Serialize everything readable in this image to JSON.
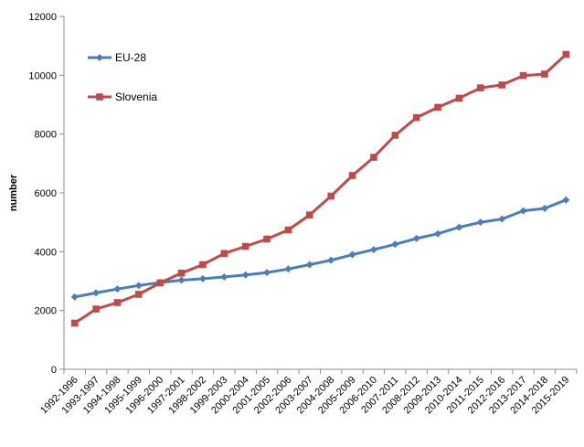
{
  "chart_data": {
    "type": "line",
    "title": "",
    "xlabel": "",
    "ylabel": "number",
    "ylim": [
      0,
      12000
    ],
    "yticks": [
      0,
      2000,
      4000,
      6000,
      8000,
      10000,
      12000
    ],
    "grid": false,
    "legend_position": "top-left",
    "categories": [
      "1992-1996",
      "1993-1997",
      "1994-1998",
      "1995-1999",
      "1996-2000",
      "1997-2001",
      "1998-2002",
      "1999-2003",
      "2000-2004",
      "2001-2005",
      "2002-2006",
      "2003-2007",
      "2004-2008",
      "2005-2009",
      "2006-2010",
      "2007-2011",
      "2008-2012",
      "2009-2013",
      "2010-2014",
      "2011-2015",
      "2012-2016",
      "2013-2017",
      "2014-2018",
      "2015-2019"
    ],
    "series": [
      {
        "name": "EU-28",
        "color": "#4a7ebb",
        "marker": "diamond",
        "values": [
          2460,
          2600,
          2730,
          2850,
          2950,
          3030,
          3080,
          3140,
          3210,
          3290,
          3410,
          3560,
          3710,
          3900,
          4070,
          4250,
          4450,
          4610,
          4830,
          5000,
          5110,
          5390,
          5470,
          5760
        ]
      },
      {
        "name": "Slovenia",
        "color": "#be4b48",
        "marker": "square",
        "values": [
          1570,
          2050,
          2270,
          2550,
          2940,
          3270,
          3560,
          3940,
          4180,
          4430,
          4740,
          5250,
          5890,
          6590,
          7210,
          7960,
          8560,
          8910,
          9220,
          9570,
          9670,
          9990,
          10040,
          10710
        ]
      }
    ]
  }
}
